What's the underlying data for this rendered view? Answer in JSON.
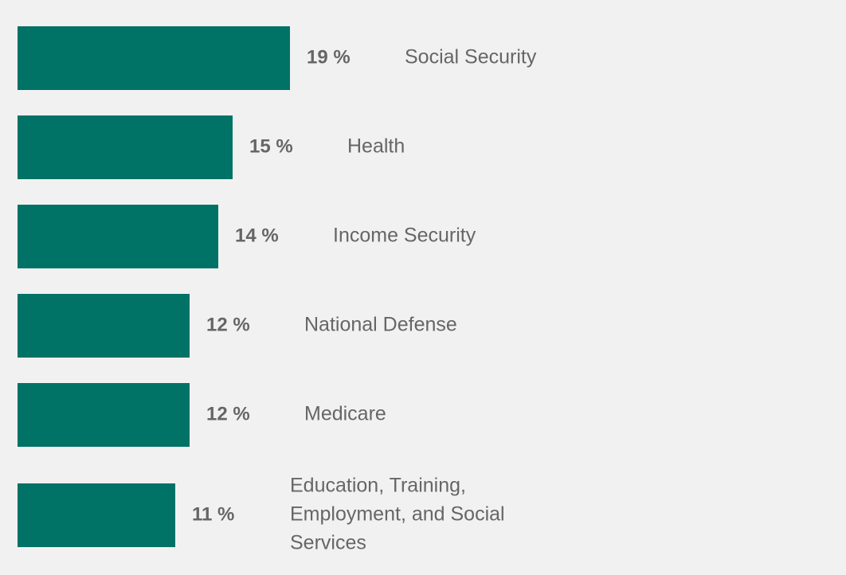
{
  "chart_data": {
    "type": "bar",
    "orientation": "horizontal",
    "title": "",
    "xlabel": "",
    "ylabel": "",
    "xlim": [
      0,
      19
    ],
    "grid": false,
    "legend": "none",
    "categories": [
      "Social Security",
      "Health",
      "Income Security",
      "National Defense",
      "Medicare",
      "Education, Training, Employment, and Social Services"
    ],
    "category_label_lines": [
      [
        "Social Security"
      ],
      [
        "Health"
      ],
      [
        "Income Security"
      ],
      [
        "National Defense"
      ],
      [
        "Medicare"
      ],
      [
        "Education, Training,",
        "Employment, and Social",
        "Services"
      ]
    ],
    "values": [
      19,
      15,
      14,
      12,
      12,
      11
    ],
    "value_labels": [
      "19 %",
      "15 %",
      "14 %",
      "12 %",
      "12 %",
      "11 %"
    ],
    "bar_color": "#007266",
    "text_color": "#666666",
    "background_color": "#f1f1f1"
  }
}
